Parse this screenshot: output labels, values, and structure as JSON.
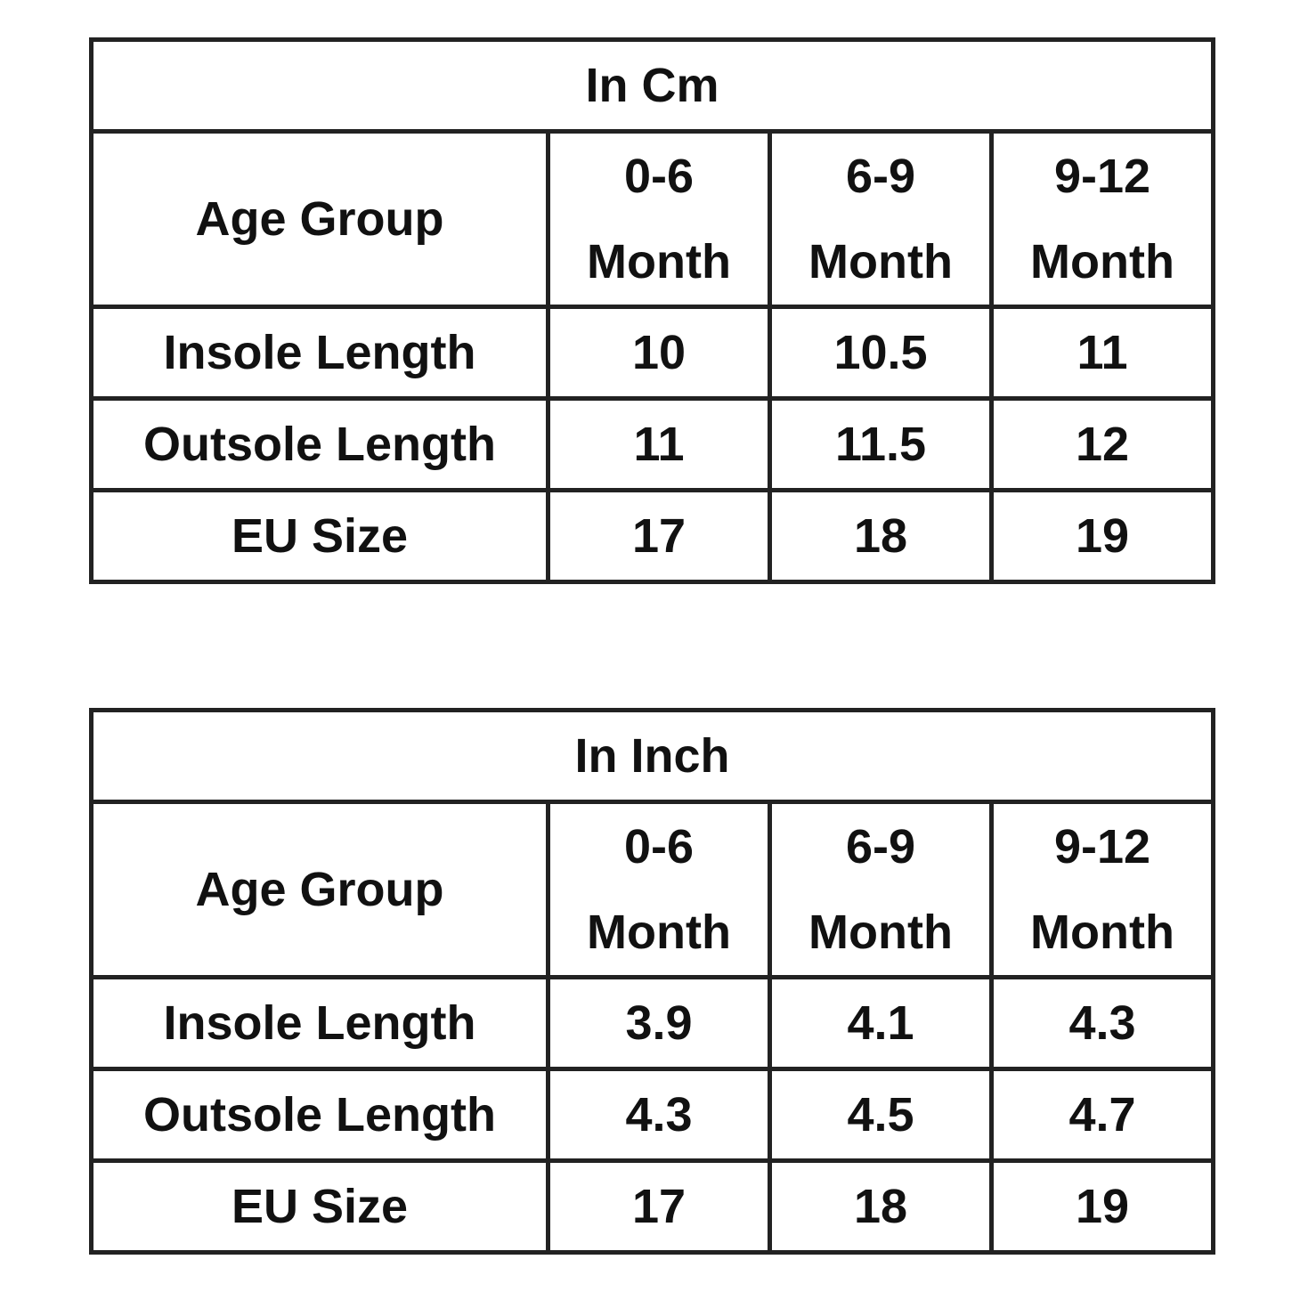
{
  "tables": [
    {
      "title": "In Cm",
      "header": [
        "Age Group",
        "0-6 Month",
        "6-9 Month",
        "9-12 Month"
      ],
      "rows": [
        [
          "Insole Length",
          "10",
          "10.5",
          "11"
        ],
        [
          "Outsole Length",
          "11",
          "11.5",
          "12"
        ],
        [
          "EU Size",
          "17",
          "18",
          "19"
        ]
      ]
    },
    {
      "title": "In Inch",
      "header": [
        "Age Group",
        "0-6 Month",
        "6-9 Month",
        "9-12 Month"
      ],
      "rows": [
        [
          "Insole Length",
          "3.9",
          "4.1",
          "4.3"
        ],
        [
          "Outsole Length",
          "4.3",
          "4.5",
          "4.7"
        ],
        [
          "EU Size",
          "17",
          "18",
          "19"
        ]
      ]
    }
  ]
}
